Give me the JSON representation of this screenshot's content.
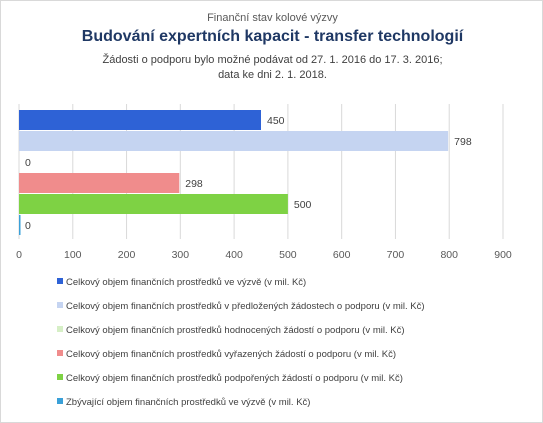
{
  "title_top": "Finanční stav kolové výzvy",
  "title_main": "Budování expertních kapacit - transfer technologií",
  "subtitle_line1": "Žádosti o podporu bylo možné  podávat od 27. 1. 2016 do 17. 3. 2016;",
  "subtitle_line2": "data ke dni 2. 1. 2018.",
  "chart_data": {
    "type": "bar",
    "orientation": "horizontal",
    "xlim": [
      0,
      900
    ],
    "x_ticks": [
      0,
      100,
      200,
      300,
      400,
      500,
      600,
      700,
      800,
      900
    ],
    "grid": true,
    "legend_placement": "bottom",
    "series": [
      {
        "name": "Celkový objem finančních prostředků ve výzvě (v mil. Kč)",
        "value": 450,
        "label": "450",
        "color": "#2e62d6"
      },
      {
        "name": "Celkový objem finančních prostředků v předložených žádostech o podporu (v mil. Kč)",
        "value": 798,
        "label": "798",
        "color": "#c5d4f1"
      },
      {
        "name": "Celkový objem finančních prostředků hodnocených žádostí o podporu (v mil. Kč)",
        "value": 0,
        "label": "0",
        "color": "#d6efc6"
      },
      {
        "name": "Celkový objem finančních prostředků vyřazených žádostí o podporu (v mil. Kč)",
        "value": 298,
        "label": "298",
        "color": "#f08c8c"
      },
      {
        "name": "Celkový objem finančních prostředků podpořených žádostí o podporu (v mil. Kč)",
        "value": 500,
        "label": "500",
        "color": "#7ed244"
      },
      {
        "name": "Zbývající objem finančních prostředků ve výzvě (v mil. Kč)",
        "value": 0,
        "label": "0",
        "color": "#3aa0d8"
      }
    ]
  }
}
